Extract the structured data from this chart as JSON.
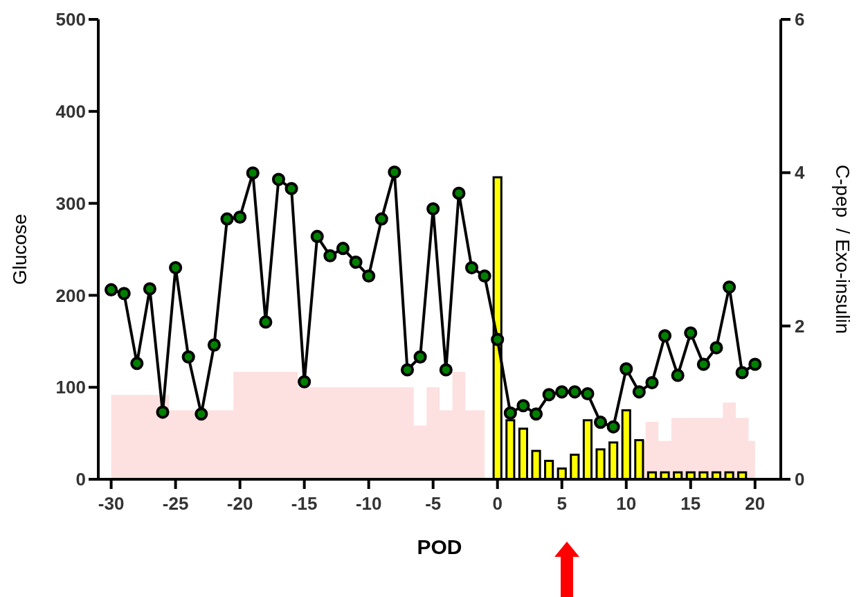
{
  "chart_data": {
    "type": "line",
    "xlabel": "POD",
    "ylabel": "Glucose",
    "y2label": "C-pep  / Exo-insulin",
    "x": [
      -30,
      -29,
      -28,
      -27,
      -26,
      -25,
      -24,
      -23,
      -22,
      -21,
      -20,
      -19,
      -18,
      -17,
      -16,
      -15,
      -14,
      -13,
      -12,
      -11,
      -10,
      -9,
      -8,
      -7,
      -6,
      -5,
      -4,
      -3,
      -2,
      -1,
      0,
      1,
      2,
      3,
      4,
      5,
      6,
      7,
      8,
      9,
      10,
      11,
      12,
      13,
      14,
      15,
      16,
      17,
      18,
      19,
      20
    ],
    "xlim": [
      -31,
      22
    ],
    "xticks": [
      -30,
      -25,
      -20,
      -15,
      -10,
      -5,
      0,
      5,
      10,
      15,
      20
    ],
    "ylim": [
      0,
      500
    ],
    "yticks": [
      0,
      100,
      200,
      300,
      400,
      500
    ],
    "y2lim": [
      0,
      6
    ],
    "y2ticks": [
      0,
      2,
      4,
      6
    ],
    "grid": false,
    "line_style": "solid",
    "series": [
      {
        "type": "area",
        "axis": "y2",
        "color": "#fde0e0",
        "marker": "none",
        "values": [
          1.1,
          1.1,
          1.1,
          1.1,
          1.1,
          0.9,
          0.9,
          0.9,
          0.9,
          0.9,
          1.4,
          1.4,
          1.4,
          1.4,
          1.4,
          1.2,
          1.2,
          1.2,
          1.2,
          1.2,
          1.2,
          1.2,
          1.2,
          1.2,
          0.7,
          1.2,
          0.9,
          1.4,
          0.9,
          0.9,
          null,
          null,
          null,
          null,
          null,
          null,
          null,
          null,
          null,
          null,
          null,
          0.5,
          0.75,
          0.5,
          0.8,
          0.8,
          0.8,
          0.8,
          1.0,
          0.8,
          0.5
        ]
      },
      {
        "type": "bar",
        "axis": "y2",
        "color": "#ffff00",
        "values": [
          null,
          null,
          null,
          null,
          null,
          null,
          null,
          null,
          null,
          null,
          null,
          null,
          null,
          null,
          null,
          null,
          null,
          null,
          null,
          null,
          null,
          null,
          null,
          null,
          null,
          null,
          null,
          null,
          null,
          null,
          3.94,
          0.77,
          0.66,
          0.37,
          0.24,
          0.14,
          0.32,
          0.77,
          0.39,
          0.48,
          0.9,
          0.51,
          0.09,
          0.09,
          0.09,
          0.09,
          0.09,
          0.09,
          0.09,
          0.09,
          null
        ]
      },
      {
        "color": "#008000",
        "marker": "circle",
        "values": [
          206,
          202,
          126,
          207,
          73,
          230,
          133,
          71,
          146,
          283,
          285,
          333,
          171,
          326,
          316,
          106,
          264,
          243,
          251,
          236,
          221,
          283,
          334,
          119,
          133,
          294,
          119,
          311,
          230,
          221,
          152,
          72,
          80,
          71,
          92,
          95,
          95,
          93,
          62,
          57,
          120,
          95,
          105,
          156,
          113,
          159,
          125,
          143,
          209,
          116,
          125
        ]
      }
    ]
  }
}
